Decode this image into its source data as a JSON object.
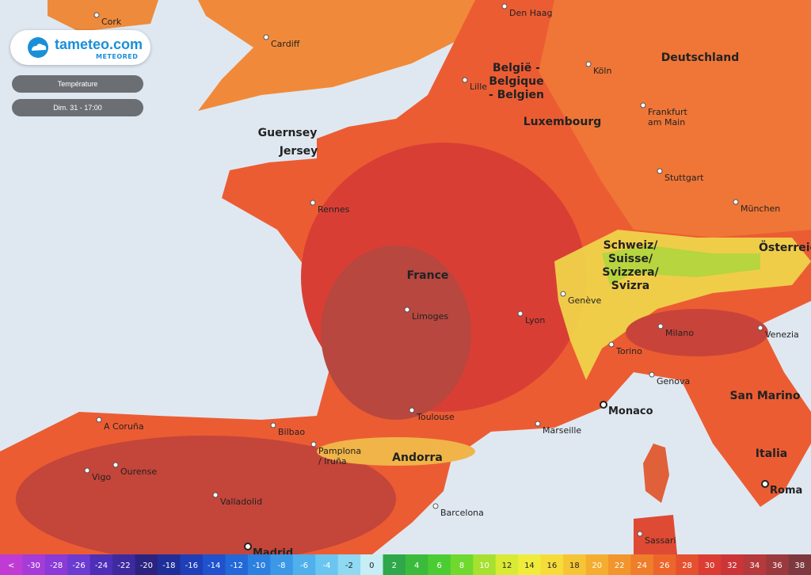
{
  "logo": {
    "name": "tameteo.com",
    "brand": "METEORED"
  },
  "controls": {
    "layer": "Température",
    "time": "Dim. 31 - 17:00"
  },
  "cities": [
    "Cork",
    "Cardiff",
    "Den Haag",
    "Köln",
    "Lille",
    [
      "Frankfurt",
      "am Main"
    ],
    "Stuttgart",
    "München",
    "Rennes",
    "Limoges",
    "Lyon",
    "Genève",
    "Milano",
    "Venezia",
    "Torino",
    "Genova",
    "Toulouse",
    "Marseille",
    "Monaco",
    "Bilbao",
    "A Coruña",
    [
      "Pamplona",
      "/ Iruña"
    ],
    "Ourense",
    "Vigo",
    "Valladolid",
    "Barcelona",
    "Madrid",
    "Sassari",
    "Roma"
  ],
  "regions": [
    [
      "België -",
      "Belgique",
      "- Belgien"
    ],
    "Deutschland",
    "Luxembourg",
    "France",
    [
      "Schweiz/",
      "Suisse/",
      "Svizzera/",
      "Svizra"
    ],
    "Österreich",
    "Italia",
    "San Marino",
    "Andorra",
    "Guernsey",
    "Jersey"
  ],
  "legend": [
    {
      "label": "<",
      "color": "#c03bd4"
    },
    {
      "label": -30,
      "color": "#a53bd8"
    },
    {
      "label": -28,
      "color": "#8a3ad6"
    },
    {
      "label": -26,
      "color": "#6b3bd2"
    },
    {
      "label": -24,
      "color": "#4d2fb8"
    },
    {
      "label": -22,
      "color": "#3d2a9e"
    },
    {
      "label": -20,
      "color": "#2a2380"
    },
    {
      "label": -18,
      "color": "#1f2f9a"
    },
    {
      "label": -16,
      "color": "#1f3fb8"
    },
    {
      "label": -14,
      "color": "#1f52cc"
    },
    {
      "label": -12,
      "color": "#2368d8"
    },
    {
      "label": -10,
      "color": "#2b80e0"
    },
    {
      "label": -8,
      "color": "#3a98e6"
    },
    {
      "label": -6,
      "color": "#4fb0ec"
    },
    {
      "label": -4,
      "color": "#6ac6f0"
    },
    {
      "label": -2,
      "color": "#8fd9f2"
    },
    {
      "label": 0,
      "color": "#c8eef5"
    },
    {
      "label": 2,
      "color": "#2ea84a"
    },
    {
      "label": 4,
      "color": "#3bbb3b"
    },
    {
      "label": 6,
      "color": "#4ccc33"
    },
    {
      "label": 8,
      "color": "#6fd92e"
    },
    {
      "label": 10,
      "color": "#a6e030"
    },
    {
      "label": 12,
      "color": "#d8ea34"
    },
    {
      "label": 14,
      "color": "#f0ec3c"
    },
    {
      "label": 16,
      "color": "#f5dc3a"
    },
    {
      "label": 18,
      "color": "#f6c535"
    },
    {
      "label": 20,
      "color": "#f5ad30"
    },
    {
      "label": 22,
      "color": "#f2952c"
    },
    {
      "label": 24,
      "color": "#ef7d2a"
    },
    {
      "label": 26,
      "color": "#ec662b"
    },
    {
      "label": 28,
      "color": "#e5502e"
    },
    {
      "label": 30,
      "color": "#dc3d33"
    },
    {
      "label": 32,
      "color": "#cc3537"
    },
    {
      "label": 34,
      "color": "#b63a3c"
    },
    {
      "label": 36,
      "color": "#9b3a3e"
    },
    {
      "label": 38,
      "color": "#7d3a3e"
    }
  ]
}
